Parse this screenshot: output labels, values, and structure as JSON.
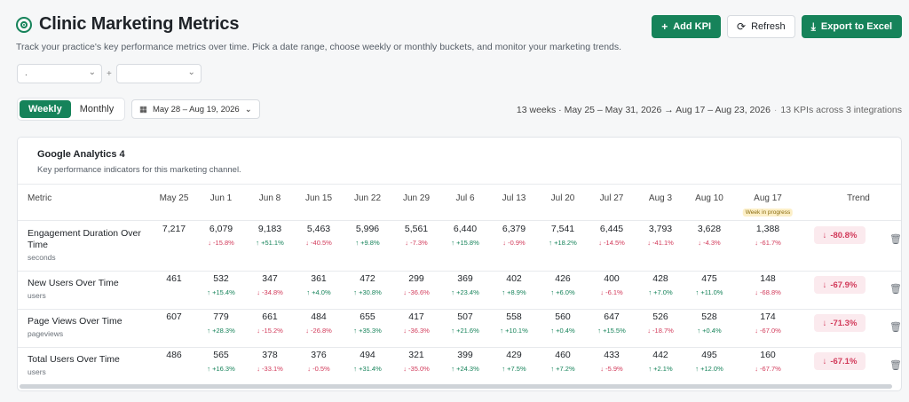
{
  "header": {
    "title": "Clinic Marketing Metrics",
    "subtitle": "Track your practice's key performance metrics over time. Pick a date range, choose weekly or monthly buckets, and monitor your marketing trends."
  },
  "actions": {
    "add_kpi": "Add KPI",
    "refresh": "Refresh",
    "export": "Export to Excel"
  },
  "filters": {
    "select1": ".",
    "plus": "+",
    "select2": ""
  },
  "toggle": {
    "weekly": "Weekly",
    "monthly": "Monthly"
  },
  "date_range": "May 28 – Aug 19, 2026",
  "summary": {
    "range": "13 weeks · May 25 – May 31, 2026 → Aug 17 – Aug 23, 2026",
    "kpis": "13 KPIs across 3 integrations"
  },
  "card": {
    "title": "Google Analytics 4",
    "subtitle": "Key performance indicators for this marketing channel."
  },
  "table": {
    "metric_header": "Metric",
    "trend_header": "Trend",
    "wip_badge": "Week in progress",
    "weeks": [
      "May 25",
      "Jun 1",
      "Jun 8",
      "Jun 15",
      "Jun 22",
      "Jun 29",
      "Jul 6",
      "Jul 13",
      "Jul 20",
      "Jul 27",
      "Aug 3",
      "Aug 10",
      "Aug 17"
    ],
    "rows": [
      {
        "name": "Engagement Duration Over Time",
        "unit": "seconds",
        "values": [
          "7,217",
          "6,079",
          "9,183",
          "5,463",
          "5,996",
          "5,561",
          "6,440",
          "6,379",
          "7,541",
          "6,445",
          "3,793",
          "3,628",
          "1,388"
        ],
        "changes": [
          "",
          "↓ -15.8%",
          "↑ +51.1%",
          "↓ -40.5%",
          "↑ +9.8%",
          "↓ -7.3%",
          "↑ +15.8%",
          "↓ -0.9%",
          "↑ +18.2%",
          "↓ -14.5%",
          "↓ -41.1%",
          "↓ -4.3%",
          "↓ -61.7%"
        ],
        "trend": "-80.8%"
      },
      {
        "name": "New Users Over Time",
        "unit": "users",
        "values": [
          "461",
          "532",
          "347",
          "361",
          "472",
          "299",
          "369",
          "402",
          "426",
          "400",
          "428",
          "475",
          "148"
        ],
        "changes": [
          "",
          "↑ +15.4%",
          "↓ -34.8%",
          "↑ +4.0%",
          "↑ +30.8%",
          "↓ -36.6%",
          "↑ +23.4%",
          "↑ +8.9%",
          "↑ +6.0%",
          "↓ -6.1%",
          "↑ +7.0%",
          "↑ +11.0%",
          "↓ -68.8%"
        ],
        "trend": "-67.9%"
      },
      {
        "name": "Page Views Over Time",
        "unit": "pageviews",
        "values": [
          "607",
          "779",
          "661",
          "484",
          "655",
          "417",
          "507",
          "558",
          "560",
          "647",
          "526",
          "528",
          "174"
        ],
        "changes": [
          "",
          "↑ +28.3%",
          "↓ -15.2%",
          "↓ -26.8%",
          "↑ +35.3%",
          "↓ -36.3%",
          "↑ +21.6%",
          "↑ +10.1%",
          "↑ +0.4%",
          "↑ +15.5%",
          "↓ -18.7%",
          "↑ +0.4%",
          "↓ -67.0%"
        ],
        "trend": "-71.3%"
      },
      {
        "name": "Total Users Over Time",
        "unit": "users",
        "values": [
          "486",
          "565",
          "378",
          "376",
          "494",
          "321",
          "399",
          "429",
          "460",
          "433",
          "442",
          "495",
          "160"
        ],
        "changes": [
          "",
          "↑ +16.3%",
          "↓ -33.1%",
          "↓ -0.5%",
          "↑ +31.4%",
          "↓ -35.0%",
          "↑ +24.3%",
          "↑ +7.5%",
          "↑ +7.2%",
          "↓ -5.9%",
          "↑ +2.1%",
          "↑ +12.0%",
          "↓ -67.7%"
        ],
        "trend": "-67.1%"
      }
    ]
  },
  "colors": {
    "accent": "#16835a",
    "up": "#16835a",
    "down": "#d23a5a",
    "wip_bg": "#fcefc7"
  }
}
